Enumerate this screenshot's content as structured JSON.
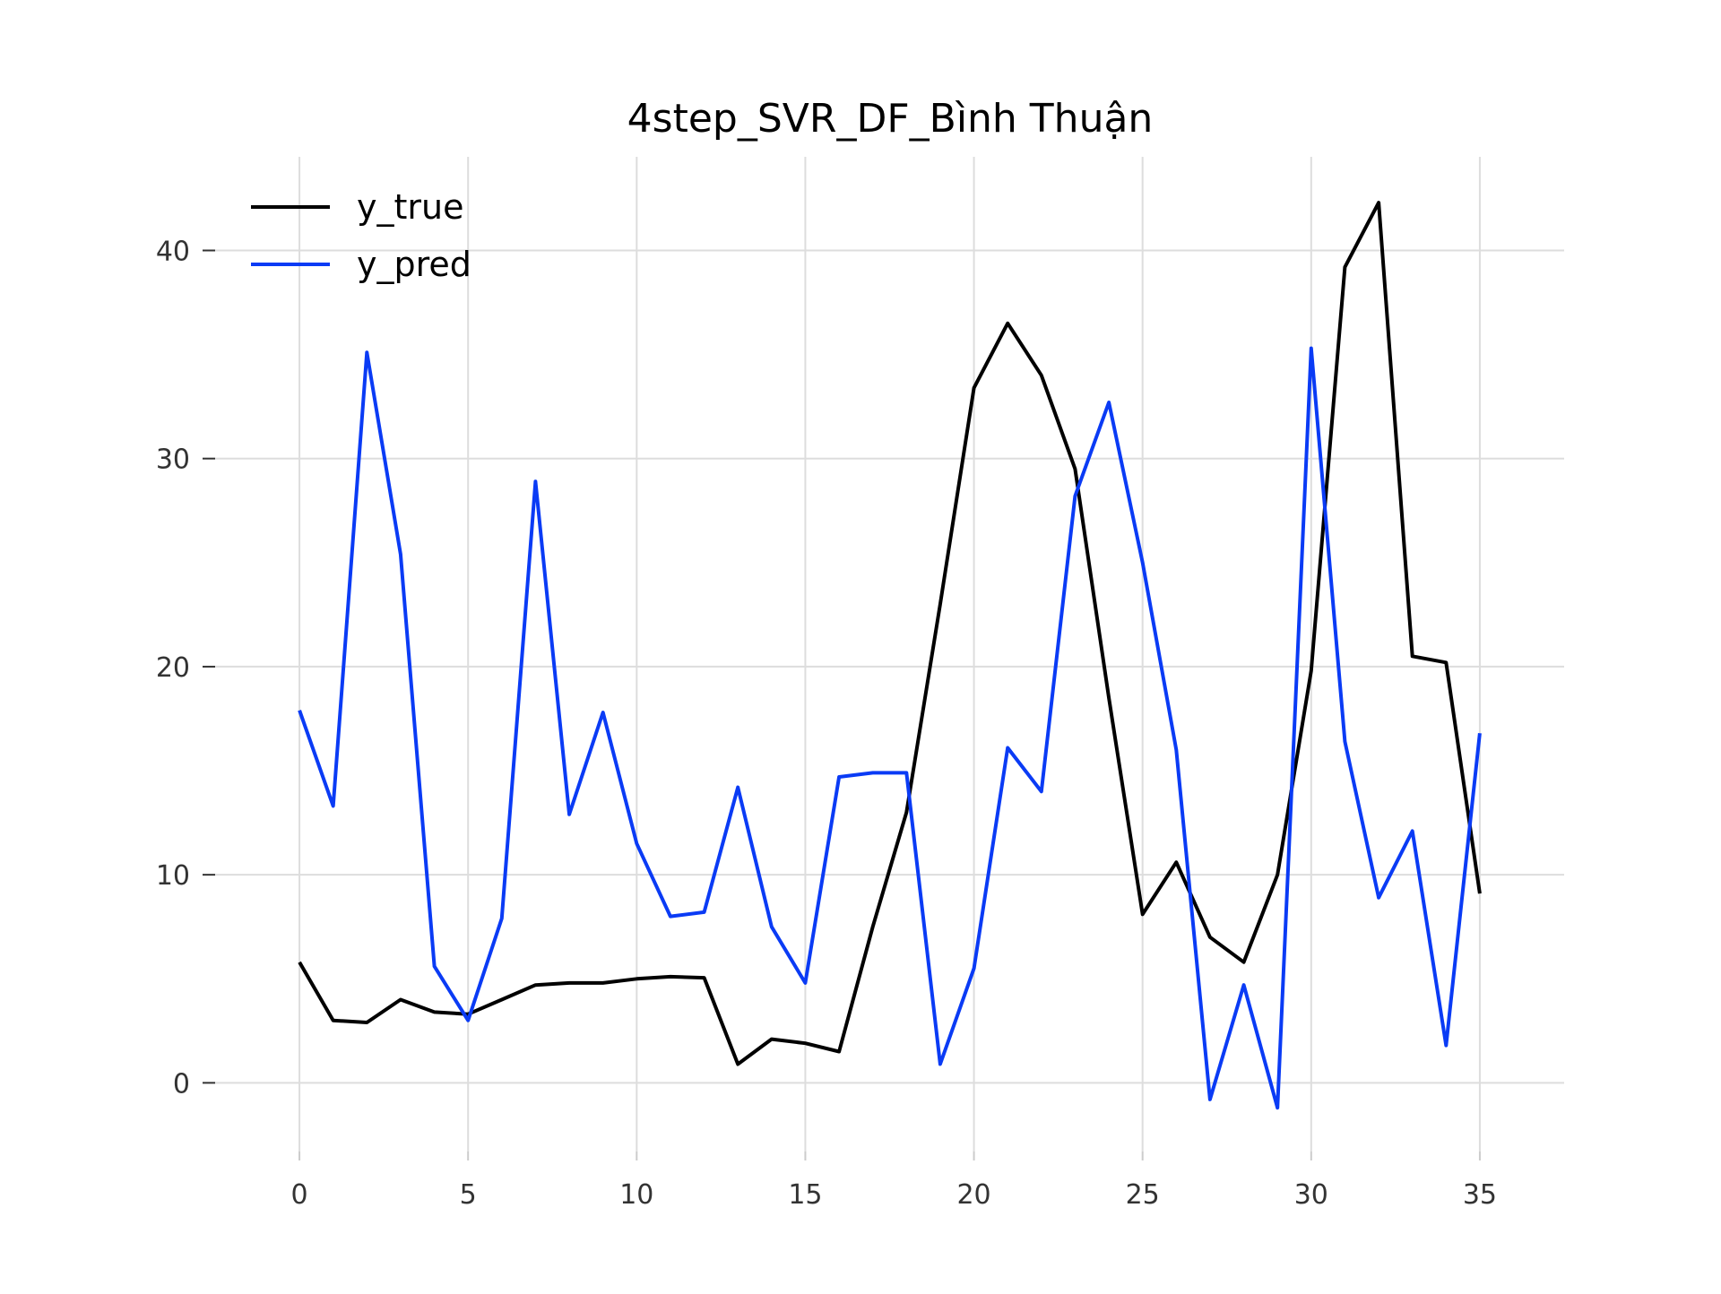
{
  "chart_data": {
    "type": "line",
    "title": "4step_SVR_DF_Bình Thuận",
    "xlabel": "",
    "ylabel": "",
    "x": [
      0,
      1,
      2,
      3,
      4,
      5,
      6,
      7,
      8,
      9,
      10,
      11,
      12,
      13,
      14,
      15,
      16,
      17,
      18,
      19,
      20,
      21,
      22,
      23,
      24,
      25,
      26,
      27,
      28,
      29,
      30,
      31,
      32,
      33,
      34,
      35
    ],
    "xlim": [
      -2.5,
      37.5
    ],
    "ylim": [
      -3.3,
      44.5
    ],
    "xticks": [
      0,
      5,
      10,
      15,
      20,
      25,
      30,
      35
    ],
    "xtick_labels": [
      "0",
      "5",
      "10",
      "15",
      "20",
      "25",
      "30",
      "35"
    ],
    "yticks": [
      0,
      10,
      20,
      30,
      40
    ],
    "ytick_labels": [
      "0",
      "10",
      "20",
      "30",
      "40"
    ],
    "grid": true,
    "legend_position": "top-left",
    "series": [
      {
        "name": "y_true",
        "color": "#000000",
        "values": [
          5.8,
          3.0,
          2.9,
          4.0,
          3.4,
          3.3,
          4.0,
          4.7,
          4.8,
          4.8,
          5.0,
          5.1,
          5.05,
          0.9,
          2.1,
          1.9,
          1.5,
          7.5,
          13.0,
          23.0,
          33.4,
          36.5,
          34.0,
          29.5,
          18.5,
          8.1,
          10.6,
          7.0,
          5.8,
          10.0,
          19.8,
          39.2,
          42.3,
          20.5,
          20.2,
          9.1
        ]
      },
      {
        "name": "y_pred",
        "color": "#0a3bf5",
        "values": [
          17.9,
          13.3,
          35.1,
          25.4,
          5.6,
          3.0,
          7.9,
          28.9,
          12.9,
          17.8,
          11.5,
          8.0,
          8.2,
          14.2,
          7.5,
          4.8,
          14.7,
          14.9,
          14.9,
          0.9,
          5.5,
          16.1,
          14.0,
          28.2,
          32.7,
          25.0,
          16.0,
          -0.8,
          4.7,
          -1.2,
          35.3,
          16.4,
          8.9,
          12.1,
          1.8,
          16.8
        ]
      }
    ]
  }
}
